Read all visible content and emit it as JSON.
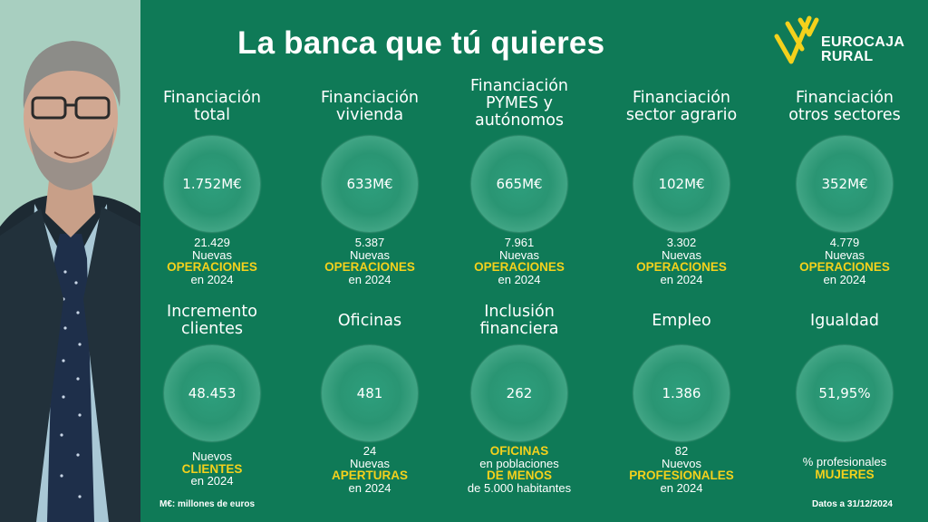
{
  "title": "La banca que tú quieres",
  "brand": {
    "line1": "EUROCAJA",
    "line2": "RURAL"
  },
  "row1": [
    {
      "label": [
        "Financiación",
        "total"
      ],
      "value": "1.752M€",
      "count": "21.429",
      "l2": "Nuevas",
      "l3": "OPERACIONES",
      "l4": "en 2024"
    },
    {
      "label": [
        "Financiación",
        "vivienda"
      ],
      "value": "633M€",
      "count": "5.387",
      "l2": "Nuevas",
      "l3": "OPERACIONES",
      "l4": "en 2024"
    },
    {
      "label": [
        "Financiación",
        "PYMES y",
        "autónomos"
      ],
      "value": "665M€",
      "count": "7.961",
      "l2": "Nuevas",
      "l3": "OPERACIONES",
      "l4": "en 2024"
    },
    {
      "label": [
        "Financiación",
        "sector agrario"
      ],
      "value": "102M€",
      "count": "3.302",
      "l2": "Nuevas",
      "l3": "OPERACIONES",
      "l4": "en 2024"
    },
    {
      "label": [
        "Financiación",
        "otros sectores"
      ],
      "value": "352M€",
      "count": "4.779",
      "l2": "Nuevas",
      "l3": "OPERACIONES",
      "l4": "en 2024"
    }
  ],
  "row2": [
    {
      "label": [
        "Incremento",
        "clientes"
      ],
      "value": "48.453",
      "lines": [
        {
          "t": "Nuevos",
          "y": false
        },
        {
          "t": "CLIENTES",
          "y": true
        },
        {
          "t": "en 2024",
          "y": false
        }
      ]
    },
    {
      "label": [
        "Oficinas"
      ],
      "value": "481",
      "lines": [
        {
          "t": "24",
          "y": false
        },
        {
          "t": "Nuevas",
          "y": false
        },
        {
          "t": "APERTURAS",
          "y": true
        },
        {
          "t": "en 2024",
          "y": false
        }
      ]
    },
    {
      "label": [
        "Inclusión",
        "financiera"
      ],
      "value": "262",
      "lines": [
        {
          "t": "OFICINAS",
          "y": true
        },
        {
          "t": "en poblaciones",
          "y": false
        },
        {
          "t": "DE MENOS",
          "y": true
        },
        {
          "t": "de 5.000 habitantes",
          "y": false
        }
      ]
    },
    {
      "label": [
        "Empleo"
      ],
      "value": "1.386",
      "lines": [
        {
          "t": "82",
          "y": false
        },
        {
          "t": "Nuevos",
          "y": false
        },
        {
          "t": "PROFESIONALES",
          "y": true
        },
        {
          "t": "en 2024",
          "y": false
        }
      ]
    },
    {
      "label": [
        "Igualdad"
      ],
      "value": "51,95%",
      "lines": [
        {
          "t": "% profesionales",
          "y": false
        },
        {
          "t": "MUJERES",
          "y": true
        }
      ]
    }
  ],
  "footer": {
    "left": "M€: millones de euros",
    "right": "Datos a 31/12/2024"
  },
  "colors": {
    "background": "#0f7a57",
    "accent": "#f4d11c",
    "text": "#ffffff"
  }
}
